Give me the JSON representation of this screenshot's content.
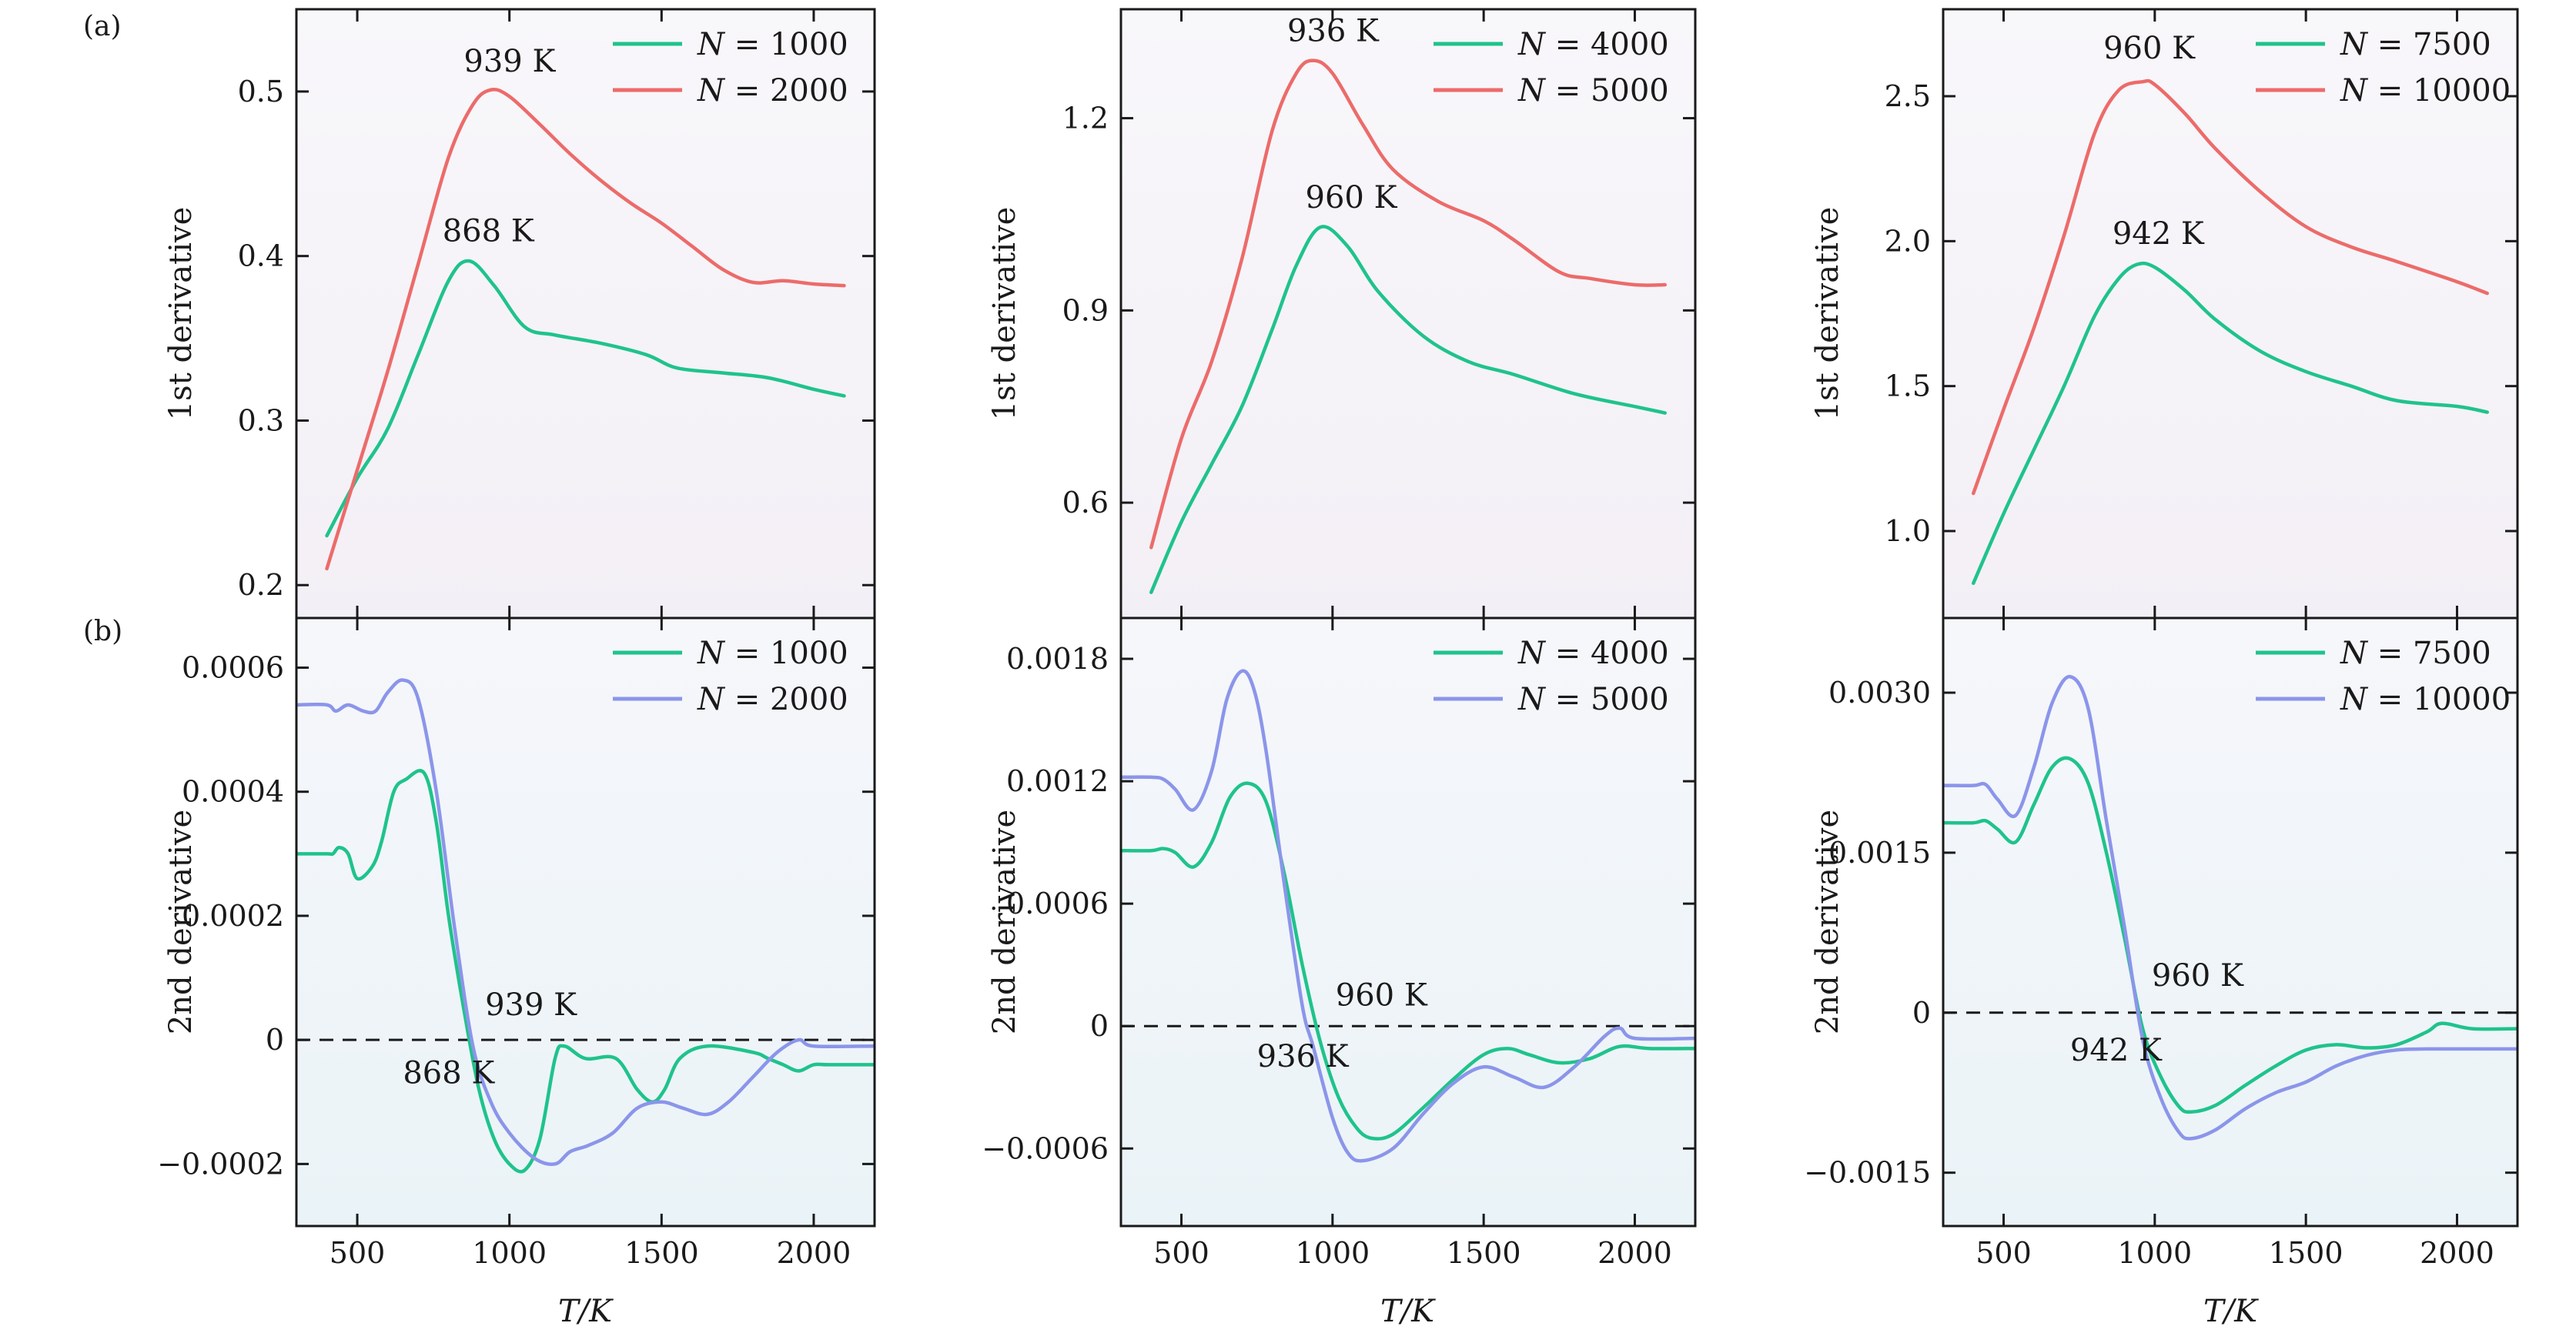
{
  "figure": {
    "label_a": "(a)",
    "label_b": "(b)",
    "xlabel": "T/K",
    "xlim": [
      300,
      2200
    ],
    "xticks": [
      500,
      1000,
      1500,
      2000
    ],
    "xtick_labels": [
      "500",
      "1000",
      "1500",
      "2000"
    ]
  },
  "colors": {
    "green": "#1fc38b",
    "red": "#ec6b6a",
    "blue": "#8b95ea",
    "axis": "#1a1a1a",
    "bg_top_a": "#f7f5f9",
    "bg_bottom_a": "#f2eef5",
    "bg_top_b": "#f4f6fa",
    "bg_bottom_b": "#ecf4f8"
  },
  "chart_data": [
    {
      "id": "a1",
      "type": "line",
      "ylabel": "1st derivative",
      "ylim": [
        0.18,
        0.55
      ],
      "yticks": [
        0.2,
        0.3,
        0.4,
        0.5
      ],
      "ytick_labels": [
        "0.2",
        "0.3",
        "0.4",
        "0.5"
      ],
      "series": [
        {
          "name": "N = 1000",
          "n": "1000",
          "color": "green",
          "x": [
            400,
            500,
            600,
            700,
            800,
            868,
            950,
            1050,
            1150,
            1300,
            1450,
            1550,
            1700,
            1850,
            2000,
            2100
          ],
          "y": [
            0.23,
            0.265,
            0.295,
            0.34,
            0.385,
            0.397,
            0.382,
            0.357,
            0.352,
            0.347,
            0.34,
            0.332,
            0.329,
            0.326,
            0.319,
            0.315
          ]
        },
        {
          "name": "N = 2000",
          "n": "2000",
          "color": "red",
          "x": [
            400,
            500,
            600,
            700,
            800,
            880,
            939,
            1000,
            1100,
            1200,
            1300,
            1400,
            1500,
            1600,
            1700,
            1800,
            1900,
            2000,
            2100
          ],
          "y": [
            0.21,
            0.27,
            0.33,
            0.395,
            0.46,
            0.492,
            0.501,
            0.497,
            0.48,
            0.462,
            0.446,
            0.432,
            0.42,
            0.406,
            0.392,
            0.384,
            0.385,
            0.383,
            0.382
          ]
        }
      ],
      "annotations": [
        {
          "text": "939 K",
          "x": 850,
          "y": 0.512
        },
        {
          "text": "868 K",
          "x": 780,
          "y": 0.409
        }
      ]
    },
    {
      "id": "a2",
      "type": "line",
      "ylabel": "1st derivative",
      "ylim": [
        0.42,
        1.37
      ],
      "yticks": [
        0.6,
        0.9,
        1.2
      ],
      "ytick_labels": [
        "0.6",
        "0.9",
        "1.2"
      ],
      "series": [
        {
          "name": "N = 4000",
          "n": "4000",
          "color": "green",
          "x": [
            400,
            500,
            600,
            700,
            800,
            880,
            960,
            1050,
            1150,
            1300,
            1450,
            1600,
            1800,
            2000,
            2100
          ],
          "y": [
            0.46,
            0.57,
            0.66,
            0.75,
            0.87,
            0.97,
            1.03,
            1.0,
            0.93,
            0.86,
            0.82,
            0.8,
            0.77,
            0.75,
            0.74
          ]
        },
        {
          "name": "N = 5000",
          "n": "5000",
          "color": "red",
          "x": [
            400,
            500,
            600,
            700,
            800,
            880,
            936,
            1000,
            1100,
            1200,
            1350,
            1500,
            1600,
            1750,
            1850,
            2000,
            2100
          ],
          "y": [
            0.53,
            0.7,
            0.82,
            0.98,
            1.18,
            1.27,
            1.29,
            1.27,
            1.19,
            1.12,
            1.07,
            1.04,
            1.01,
            0.96,
            0.95,
            0.94,
            0.94
          ]
        }
      ],
      "annotations": [
        {
          "text": "936 K",
          "x": 850,
          "y": 1.32
        },
        {
          "text": "960 K",
          "x": 910,
          "y": 1.06
        }
      ]
    },
    {
      "id": "a3",
      "type": "line",
      "ylabel": "1st derivative",
      "ylim": [
        0.7,
        2.8
      ],
      "yticks": [
        1.0,
        1.5,
        2.0,
        2.5
      ],
      "ytick_labels": [
        "1.0",
        "1.5",
        "2.0",
        "2.5"
      ],
      "series": [
        {
          "name": "N = 7500",
          "n": "7500",
          "color": "green",
          "x": [
            400,
            500,
            600,
            700,
            800,
            880,
            942,
            1000,
            1100,
            1200,
            1350,
            1500,
            1650,
            1800,
            2000,
            2100
          ],
          "y": [
            0.82,
            1.06,
            1.28,
            1.5,
            1.74,
            1.87,
            1.92,
            1.91,
            1.83,
            1.73,
            1.62,
            1.55,
            1.5,
            1.45,
            1.43,
            1.41
          ]
        },
        {
          "name": "N = 10000",
          "n": "10000",
          "color": "red",
          "x": [
            400,
            500,
            600,
            700,
            800,
            880,
            960,
            1000,
            1100,
            1200,
            1350,
            1500,
            1650,
            1800,
            2000,
            2100
          ],
          "y": [
            1.13,
            1.42,
            1.7,
            2.02,
            2.37,
            2.52,
            2.55,
            2.54,
            2.44,
            2.32,
            2.17,
            2.05,
            1.98,
            1.93,
            1.86,
            1.82
          ]
        }
      ],
      "annotations": [
        {
          "text": "960 K",
          "x": 830,
          "y": 2.63
        },
        {
          "text": "942 K",
          "x": 860,
          "y": 1.99
        }
      ]
    },
    {
      "id": "b1",
      "type": "line",
      "ylabel": "2nd derivative",
      "ylim": [
        -0.0003,
        0.00068
      ],
      "yticks": [
        -0.0002,
        0,
        0.0002,
        0.0004,
        0.0006
      ],
      "ytick_labels": [
        "−0.0002",
        "0",
        "0.0002",
        "0.0004",
        "0.0006"
      ],
      "hline": 0,
      "series": [
        {
          "name": "N = 1000",
          "n": "1000",
          "color": "green",
          "x": [
            300,
            400,
            420,
            440,
            470,
            500,
            550,
            580,
            620,
            660,
            720,
            760,
            800,
            850,
            900,
            950,
            1000,
            1050,
            1100,
            1150,
            1180,
            1250,
            1350,
            1420,
            1470,
            1510,
            1560,
            1650,
            1800,
            1850,
            1900,
            1950,
            2000,
            2050,
            2200
          ],
          "y": [
            0.0003,
            0.0003,
            0.0003,
            0.00031,
            0.0003,
            0.00026,
            0.00028,
            0.00032,
            0.0004,
            0.00042,
            0.00043,
            0.00035,
            0.0002,
            5e-05,
            -8e-05,
            -0.00016,
            -0.0002,
            -0.00021,
            -0.00016,
            -3e-05,
            -1e-05,
            -3e-05,
            -3e-05,
            -8e-05,
            -0.0001,
            -8e-05,
            -3e-05,
            -1e-05,
            -2e-05,
            -3e-05,
            -4e-05,
            -5e-05,
            -4e-05,
            -4e-05,
            -4e-05
          ]
        },
        {
          "name": "N = 2000",
          "n": "2000",
          "color": "blue",
          "x": [
            300,
            400,
            430,
            470,
            520,
            560,
            600,
            650,
            700,
            760,
            820,
            880,
            939,
            1000,
            1080,
            1150,
            1200,
            1260,
            1340,
            1420,
            1500,
            1570,
            1650,
            1720,
            1800,
            1880,
            1950,
            2000,
            2200
          ],
          "y": [
            0.00054,
            0.00054,
            0.00053,
            0.00054,
            0.00053,
            0.00053,
            0.00056,
            0.00058,
            0.00055,
            0.0004,
            0.00018,
            -1e-05,
            -0.0001,
            -0.00015,
            -0.00019,
            -0.0002,
            -0.00018,
            -0.00017,
            -0.00015,
            -0.00011,
            -0.0001,
            -0.00011,
            -0.00012,
            -0.0001,
            -6e-05,
            -2e-05,
            0.0,
            -1e-05,
            -1e-05
          ]
        }
      ],
      "annotations": [
        {
          "text": "939 K",
          "x": 920,
          "y": 4e-05
        },
        {
          "text": "868 K",
          "x": 650,
          "y": -7e-05
        }
      ]
    },
    {
      "id": "b2",
      "type": "line",
      "ylabel": "2nd derivative",
      "ylim": [
        -0.00098,
        0.002
      ],
      "yticks": [
        -0.0006,
        0,
        0.0006,
        0.0012,
        0.0018
      ],
      "ytick_labels": [
        "−0.0006",
        "0",
        "0.0006",
        "0.0012",
        "0.0018"
      ],
      "hline": 0,
      "series": [
        {
          "name": "N = 4000",
          "n": "4000",
          "color": "green",
          "x": [
            300,
            400,
            440,
            480,
            540,
            600,
            660,
            720,
            780,
            840,
            900,
            960,
            1020,
            1080,
            1130,
            1200,
            1300,
            1400,
            1500,
            1580,
            1650,
            1750,
            1850,
            1950,
            2050,
            2200
          ],
          "y": [
            0.00086,
            0.00086,
            0.00087,
            0.00085,
            0.00078,
            0.0009,
            0.00112,
            0.00119,
            0.0011,
            0.00075,
            0.0003,
            -8e-05,
            -0.00035,
            -0.0005,
            -0.00055,
            -0.00053,
            -0.0004,
            -0.00026,
            -0.00014,
            -0.00011,
            -0.00014,
            -0.00018,
            -0.00016,
            -0.0001,
            -0.00011,
            -0.00011
          ]
        },
        {
          "name": "N = 5000",
          "n": "5000",
          "color": "blue",
          "x": [
            300,
            400,
            440,
            480,
            540,
            600,
            650,
            700,
            740,
            780,
            840,
            900,
            936,
            1000,
            1050,
            1100,
            1200,
            1300,
            1400,
            1500,
            1600,
            1700,
            1800,
            1900,
            1950,
            2000,
            2200
          ],
          "y": [
            0.00122,
            0.00122,
            0.00121,
            0.00116,
            0.00106,
            0.00125,
            0.0016,
            0.00174,
            0.00165,
            0.00135,
            0.0007,
            0.0001,
            -0.0001,
            -0.00045,
            -0.00062,
            -0.00066,
            -0.0006,
            -0.00043,
            -0.00028,
            -0.0002,
            -0.00025,
            -0.0003,
            -0.0002,
            -5e-05,
            -1e-05,
            -6e-05,
            -6e-05
          ]
        }
      ],
      "annotations": [
        {
          "text": "960 K",
          "x": 1010,
          "y": 0.0001
        },
        {
          "text": "936 K",
          "x": 750,
          "y": -0.0002
        }
      ]
    },
    {
      "id": "b3",
      "type": "line",
      "ylabel": "2nd derivative",
      "ylim": [
        -0.002,
        0.0037
      ],
      "yticks": [
        -0.0015,
        0,
        0.0015,
        0.003
      ],
      "ytick_labels": [
        "−0.0015",
        "0",
        "0.0015",
        "0.0030"
      ],
      "hline": 0,
      "series": [
        {
          "name": "N = 7500",
          "n": "7500",
          "color": "green",
          "x": [
            300,
            400,
            440,
            480,
            540,
            600,
            660,
            720,
            780,
            840,
            900,
            960,
            1020,
            1080,
            1120,
            1200,
            1300,
            1400,
            1500,
            1600,
            1700,
            1800,
            1900,
            1950,
            2050,
            2200
          ],
          "y": [
            0.00178,
            0.00178,
            0.0018,
            0.00172,
            0.0016,
            0.00195,
            0.0023,
            0.00238,
            0.00215,
            0.0015,
            0.0007,
            -0.00015,
            -0.0006,
            -0.00088,
            -0.00093,
            -0.00087,
            -0.00068,
            -0.0005,
            -0.00035,
            -0.0003,
            -0.00033,
            -0.0003,
            -0.00018,
            -0.0001,
            -0.00015,
            -0.00015
          ]
        },
        {
          "name": "N = 10000",
          "n": "10000",
          "color": "blue",
          "x": [
            300,
            400,
            440,
            480,
            540,
            600,
            660,
            720,
            780,
            840,
            900,
            960,
            1020,
            1080,
            1120,
            1200,
            1300,
            1400,
            1500,
            1600,
            1700,
            1800,
            1900,
            2000,
            2200
          ],
          "y": [
            0.00213,
            0.00213,
            0.00214,
            0.002,
            0.00185,
            0.0023,
            0.0029,
            0.00315,
            0.00285,
            0.0018,
            0.0008,
            -0.00025,
            -0.0008,
            -0.00112,
            -0.00118,
            -0.0011,
            -0.0009,
            -0.00075,
            -0.00065,
            -0.0005,
            -0.0004,
            -0.00035,
            -0.00034,
            -0.00034,
            -0.00034
          ]
        }
      ],
      "annotations": [
        {
          "text": "960 K",
          "x": 990,
          "y": 0.00025
        },
        {
          "text": "942 K",
          "x": 720,
          "y": -0.00045
        }
      ]
    }
  ]
}
